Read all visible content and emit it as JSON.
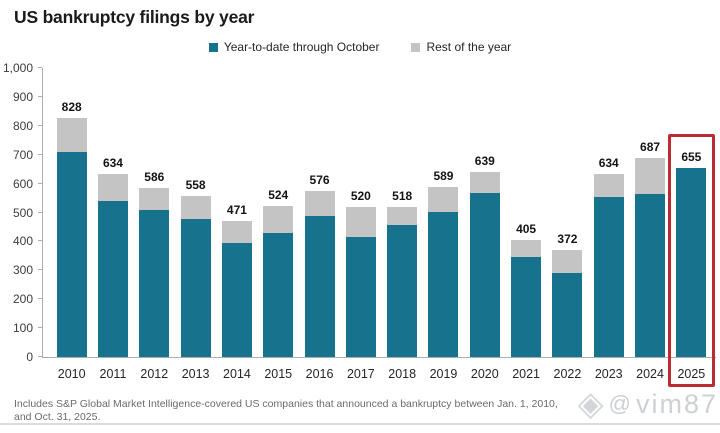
{
  "title": "US bankruptcy filings by year",
  "legend": {
    "items": [
      {
        "label": "Year-to-date through October",
        "color": "#17728e"
      },
      {
        "label": "Rest of the year",
        "color": "#c4c4c4"
      }
    ]
  },
  "chart_data": {
    "type": "bar",
    "stacked": true,
    "title": "US bankruptcy filings by year",
    "xlabel": "",
    "ylabel": "",
    "ylim": [
      0,
      1000
    ],
    "ytick_labels": [
      "1,000",
      "900",
      "800",
      "700",
      "600",
      "500",
      "400",
      "300",
      "200",
      "100",
      "0"
    ],
    "ytick_values": [
      1000,
      900,
      800,
      700,
      600,
      500,
      400,
      300,
      200,
      100,
      0
    ],
    "grid": false,
    "legend_position": "top",
    "categories": [
      "2010",
      "2011",
      "2012",
      "2013",
      "2014",
      "2015",
      "2016",
      "2017",
      "2018",
      "2019",
      "2020",
      "2021",
      "2022",
      "2023",
      "2024",
      "2025"
    ],
    "series": [
      {
        "name": "Year-to-date through October",
        "color": "#17728e",
        "values": [
          710,
          540,
          508,
          476,
          396,
          430,
          488,
          415,
          457,
          501,
          566,
          346,
          291,
          553,
          563,
          655
        ]
      },
      {
        "name": "Rest of the year",
        "color": "#c4c4c4",
        "values": [
          118,
          94,
          78,
          82,
          75,
          94,
          88,
          105,
          61,
          88,
          73,
          59,
          81,
          81,
          124,
          0
        ]
      }
    ],
    "totals": [
      828,
      634,
      586,
      558,
      471,
      524,
      576,
      520,
      518,
      589,
      639,
      405,
      372,
      634,
      687,
      655
    ],
    "highlight": {
      "category": "2025",
      "box_color": "#be2a33"
    }
  },
  "footnote": {
    "line1": "Includes S&P Global Market Intelligence-covered US companies that announced a bankruptcy between Jan. 1, 2010,",
    "line2": "and Oct. 31, 2025."
  },
  "watermark": {
    "icon": "diamond-icon",
    "at_symbol": "@",
    "handle": "vim87"
  }
}
